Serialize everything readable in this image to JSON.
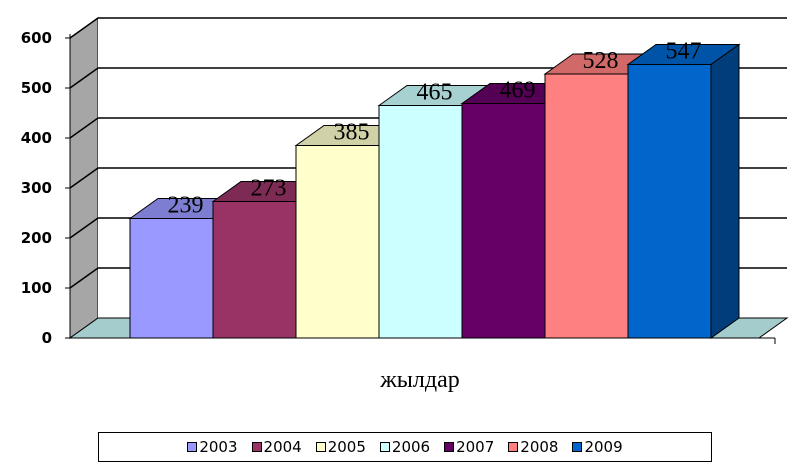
{
  "chart_data": {
    "type": "bar",
    "categories": [
      "2003",
      "2004",
      "2005",
      "2006",
      "2007",
      "2008",
      "2009"
    ],
    "values": [
      239,
      273,
      385,
      465,
      469,
      528,
      547
    ],
    "title": "",
    "xlabel": "жылдар",
    "ylabel": "",
    "ylim": [
      0,
      600
    ],
    "yticks": [
      "0",
      "100",
      "200",
      "300",
      "400",
      "500",
      "600"
    ],
    "data_labels": [
      "239",
      "273",
      "385",
      "465",
      "469",
      "528",
      "547"
    ],
    "colors": [
      "#9999ff",
      "#993366",
      "#ffffcc",
      "#ccffff",
      "#660066",
      "#ff8080",
      "#0066cc"
    ],
    "grid": true,
    "legend_position": "bottom",
    "style": "3d"
  },
  "legend": {
    "items": [
      {
        "label": "2003",
        "color": "#9999ff"
      },
      {
        "label": "2004",
        "color": "#993366"
      },
      {
        "label": "2005",
        "color": "#ffffcc"
      },
      {
        "label": "2006",
        "color": "#ccffff"
      },
      {
        "label": "2007",
        "color": "#660066"
      },
      {
        "label": "2008",
        "color": "#ff8080"
      },
      {
        "label": "2009",
        "color": "#0066cc"
      }
    ]
  }
}
